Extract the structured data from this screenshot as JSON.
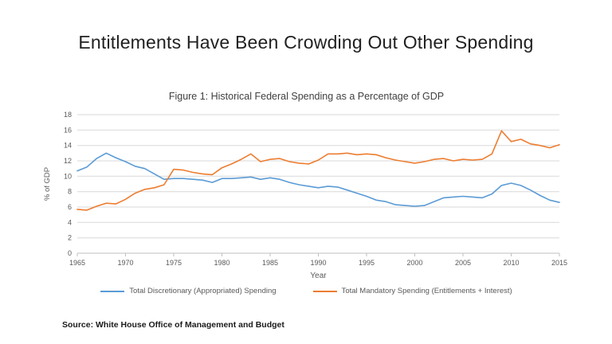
{
  "slide": {
    "title": "Entitlements Have Been Crowding Out Other Spending",
    "source": "Source: White House Office of Management and Budget"
  },
  "chart_data": {
    "type": "line",
    "title": "Figure 1: Historical Federal Spending as a Percentage of GDP",
    "xlabel": "Year",
    "ylabel": "% of GDP",
    "ylim": [
      0,
      18
    ],
    "ytick_step": 2,
    "grid": true,
    "legend_position": "bottom",
    "xticks": [
      1965,
      1970,
      1975,
      1980,
      1985,
      1990,
      1995,
      2000,
      2005,
      2010,
      2015
    ],
    "x": [
      1965,
      1966,
      1967,
      1968,
      1969,
      1970,
      1971,
      1972,
      1973,
      1974,
      1975,
      1976,
      1977,
      1978,
      1979,
      1980,
      1981,
      1982,
      1983,
      1984,
      1985,
      1986,
      1987,
      1988,
      1989,
      1990,
      1991,
      1992,
      1993,
      1994,
      1995,
      1996,
      1997,
      1998,
      1999,
      2000,
      2001,
      2002,
      2003,
      2004,
      2005,
      2006,
      2007,
      2008,
      2009,
      2010,
      2011,
      2012,
      2013,
      2014,
      2015
    ],
    "series": [
      {
        "name": "Total Discretionary (Appropriated) Spending",
        "color": "#5b9bd5",
        "values": [
          10.7,
          11.2,
          12.3,
          13.0,
          12.4,
          11.9,
          11.3,
          11.0,
          10.3,
          9.6,
          9.7,
          9.7,
          9.6,
          9.5,
          9.2,
          9.7,
          9.7,
          9.8,
          9.9,
          9.6,
          9.8,
          9.6,
          9.2,
          8.9,
          8.7,
          8.5,
          8.7,
          8.6,
          8.2,
          7.8,
          7.4,
          6.9,
          6.7,
          6.3,
          6.2,
          6.1,
          6.2,
          6.7,
          7.2,
          7.3,
          7.4,
          7.3,
          7.2,
          7.7,
          8.8,
          9.1,
          8.8,
          8.2,
          7.5,
          6.9,
          6.6
        ]
      },
      {
        "name": "Total Mandatory Spending (Entitlements + Interest)",
        "color": "#ed7d31",
        "values": [
          5.7,
          5.6,
          6.1,
          6.5,
          6.4,
          7.0,
          7.8,
          8.3,
          8.5,
          8.9,
          10.9,
          10.8,
          10.5,
          10.3,
          10.2,
          11.1,
          11.6,
          12.2,
          12.9,
          11.9,
          12.2,
          12.3,
          11.9,
          11.7,
          11.6,
          12.1,
          12.9,
          12.9,
          13.0,
          12.8,
          12.9,
          12.8,
          12.4,
          12.1,
          11.9,
          11.7,
          11.9,
          12.2,
          12.3,
          12.0,
          12.2,
          12.1,
          12.2,
          12.9,
          15.9,
          14.5,
          14.8,
          14.2,
          14.0,
          13.7,
          14.1
        ]
      }
    ],
    "axis_color": "#bfbfbf",
    "gridline_color": "#d9d9d9",
    "tick_label_color": "#595959"
  }
}
